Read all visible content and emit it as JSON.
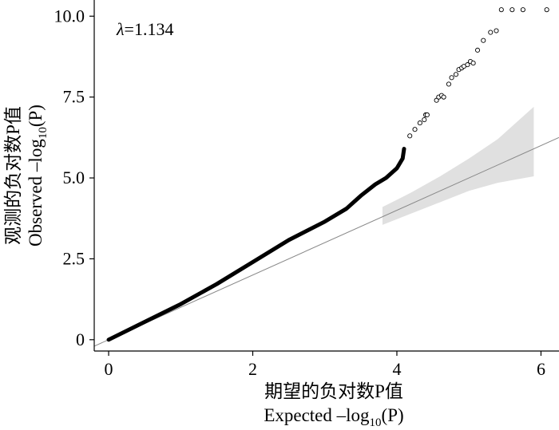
{
  "chart_data": {
    "type": "scatter",
    "title": "",
    "annotation": {
      "symbol": "λ",
      "text": "=1.134"
    },
    "xlabel": {
      "line1": "期望的负对数P值",
      "line2_prefix": "Expected –log",
      "line2_sub": "10",
      "line2_suffix": "(P)"
    },
    "ylabel": {
      "line1": "观测的负对数P值",
      "line2_prefix": "Observed –log",
      "line2_sub": "10",
      "line2_suffix": "(P)"
    },
    "xlim": [
      -0.2,
      6.25
    ],
    "ylim": [
      -0.35,
      10.5
    ],
    "x_ticks": [
      0,
      2,
      4,
      6
    ],
    "x_tick_labels": [
      "0",
      "2",
      "4",
      "6"
    ],
    "y_ticks": [
      0,
      2.5,
      5.0,
      7.5,
      10.0
    ],
    "y_tick_labels": [
      "0",
      "2.5",
      "5.0",
      "7.5",
      "10.0"
    ],
    "grid": false,
    "reference_line": {
      "slope": 1,
      "intercept": 0,
      "x_range": [
        -0.2,
        6.25
      ]
    },
    "confidence_band": {
      "x": [
        3.8,
        4.2,
        4.6,
        5.0,
        5.4,
        5.9
      ],
      "lower": [
        3.55,
        3.9,
        4.25,
        4.6,
        4.85,
        5.05
      ],
      "upper": [
        4.1,
        4.55,
        5.05,
        5.6,
        6.2,
        7.2
      ]
    },
    "series": [
      {
        "trend_points": [
          [
            0,
            0
          ],
          [
            0.5,
            0.55
          ],
          [
            1,
            1.1
          ],
          [
            1.5,
            1.72
          ],
          [
            2,
            2.4
          ],
          [
            2.5,
            3.08
          ],
          [
            3,
            3.65
          ],
          [
            3.3,
            4.05
          ],
          [
            3.5,
            4.45
          ],
          [
            3.7,
            4.8
          ],
          [
            3.85,
            5.0
          ],
          [
            4.0,
            5.3
          ],
          [
            4.08,
            5.6
          ],
          [
            4.1,
            5.9
          ]
        ],
        "tail_points": [
          [
            4.18,
            6.3
          ],
          [
            4.25,
            6.5
          ],
          [
            4.32,
            6.7
          ],
          [
            4.38,
            6.8
          ],
          [
            4.4,
            6.95
          ],
          [
            4.42,
            6.95
          ],
          [
            4.55,
            7.4
          ],
          [
            4.58,
            7.5
          ],
          [
            4.62,
            7.55
          ],
          [
            4.65,
            7.5
          ],
          [
            4.72,
            7.9
          ],
          [
            4.76,
            8.1
          ],
          [
            4.82,
            8.2
          ],
          [
            4.86,
            8.35
          ],
          [
            4.9,
            8.4
          ],
          [
            4.93,
            8.45
          ],
          [
            4.98,
            8.5
          ],
          [
            5.02,
            8.6
          ],
          [
            5.06,
            8.55
          ],
          [
            5.12,
            8.95
          ],
          [
            5.2,
            9.25
          ],
          [
            5.3,
            9.5
          ],
          [
            5.38,
            9.55
          ],
          [
            5.45,
            10.2
          ],
          [
            5.6,
            10.2
          ],
          [
            5.75,
            10.2
          ],
          [
            6.08,
            10.2
          ]
        ]
      }
    ]
  }
}
